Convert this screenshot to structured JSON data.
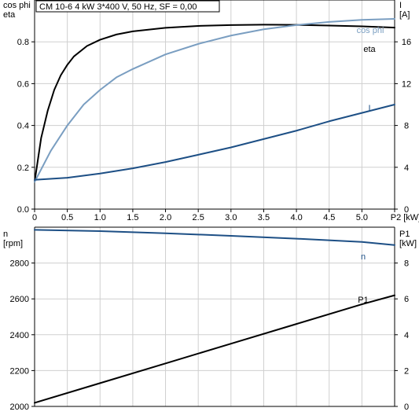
{
  "header": {
    "title": "CM 10-6   4 kW   3*400 V, 50 Hz, SF = 0,00"
  },
  "colors": {
    "eta": "#000000",
    "cosphi": "#7a9ec1",
    "current": "#1d4f85",
    "speed": "#1d4f85",
    "p1": "#000000",
    "grid": "#cfcfcf",
    "axis": "#000000"
  },
  "chart_data": [
    {
      "type": "line",
      "x_axis": {
        "label": "P2 [kW]",
        "range": [
          0,
          5.5
        ],
        "ticks": [
          "0",
          "0.5",
          "1.0",
          "1.5",
          "2.0",
          "2.5",
          "3.0",
          "3.5",
          "4.0",
          "4.5",
          "5.0"
        ]
      },
      "left_axis": {
        "label_lines": [
          "cos phi",
          "eta"
        ],
        "range": [
          0,
          1.0
        ],
        "ticks": [
          "0.0",
          "0.2",
          "0.4",
          "0.6",
          "0.8"
        ]
      },
      "right_axis": {
        "label_lines": [
          "I",
          "[A]"
        ],
        "range": [
          0,
          20
        ],
        "ticks": [
          "0",
          "4",
          "8",
          "12",
          "16"
        ]
      },
      "series": [
        {
          "name": "eta",
          "axis": "left",
          "x": [
            0.0,
            0.1,
            0.2,
            0.3,
            0.4,
            0.5,
            0.6,
            0.8,
            1.0,
            1.25,
            1.5,
            2.0,
            2.5,
            3.0,
            3.5,
            4.0,
            4.5,
            5.0,
            5.5
          ],
          "y": [
            0.13,
            0.34,
            0.47,
            0.57,
            0.64,
            0.69,
            0.73,
            0.78,
            0.81,
            0.835,
            0.85,
            0.867,
            0.876,
            0.88,
            0.882,
            0.881,
            0.878,
            0.874,
            0.868
          ]
        },
        {
          "name": "cos phi",
          "axis": "left",
          "x": [
            0.0,
            0.25,
            0.5,
            0.75,
            1.0,
            1.25,
            1.5,
            2.0,
            2.5,
            3.0,
            3.5,
            4.0,
            4.5,
            5.0,
            5.5
          ],
          "y": [
            0.13,
            0.28,
            0.4,
            0.5,
            0.57,
            0.63,
            0.67,
            0.74,
            0.79,
            0.83,
            0.86,
            0.88,
            0.895,
            0.905,
            0.91
          ]
        },
        {
          "name": "I",
          "axis": "right",
          "x": [
            0.0,
            0.5,
            1.0,
            1.5,
            2.0,
            2.5,
            3.0,
            3.5,
            4.0,
            4.5,
            5.0,
            5.5
          ],
          "y": [
            2.8,
            3.0,
            3.4,
            3.9,
            4.5,
            5.2,
            5.9,
            6.7,
            7.5,
            8.4,
            9.2,
            10.0
          ]
        }
      ],
      "series_labels": [
        "cos phi",
        "eta",
        "I"
      ]
    },
    {
      "type": "line",
      "x_axis": {
        "range": [
          0,
          5.5
        ]
      },
      "left_axis": {
        "label_lines": [
          "n",
          "[rpm]"
        ],
        "range": [
          2000,
          3000
        ],
        "ticks": [
          "2000",
          "2200",
          "2400",
          "2600",
          "2800"
        ]
      },
      "right_axis": {
        "label_lines": [
          "P1",
          "[kW]"
        ],
        "range": [
          0,
          10
        ],
        "ticks": [
          "0",
          "2",
          "4",
          "6",
          "8"
        ]
      },
      "series": [
        {
          "name": "n",
          "axis": "left",
          "x": [
            0.0,
            1.0,
            2.0,
            3.0,
            4.0,
            5.0,
            5.5
          ],
          "y": [
            2985,
            2978,
            2966,
            2952,
            2936,
            2918,
            2900
          ]
        },
        {
          "name": "P1",
          "axis": "right",
          "x": [
            0.0,
            1.0,
            2.0,
            3.0,
            4.0,
            5.0,
            5.5
          ],
          "y": [
            0.2,
            1.3,
            2.4,
            3.5,
            4.6,
            5.7,
            6.2
          ]
        }
      ],
      "series_labels": [
        "n",
        "P1"
      ]
    }
  ]
}
